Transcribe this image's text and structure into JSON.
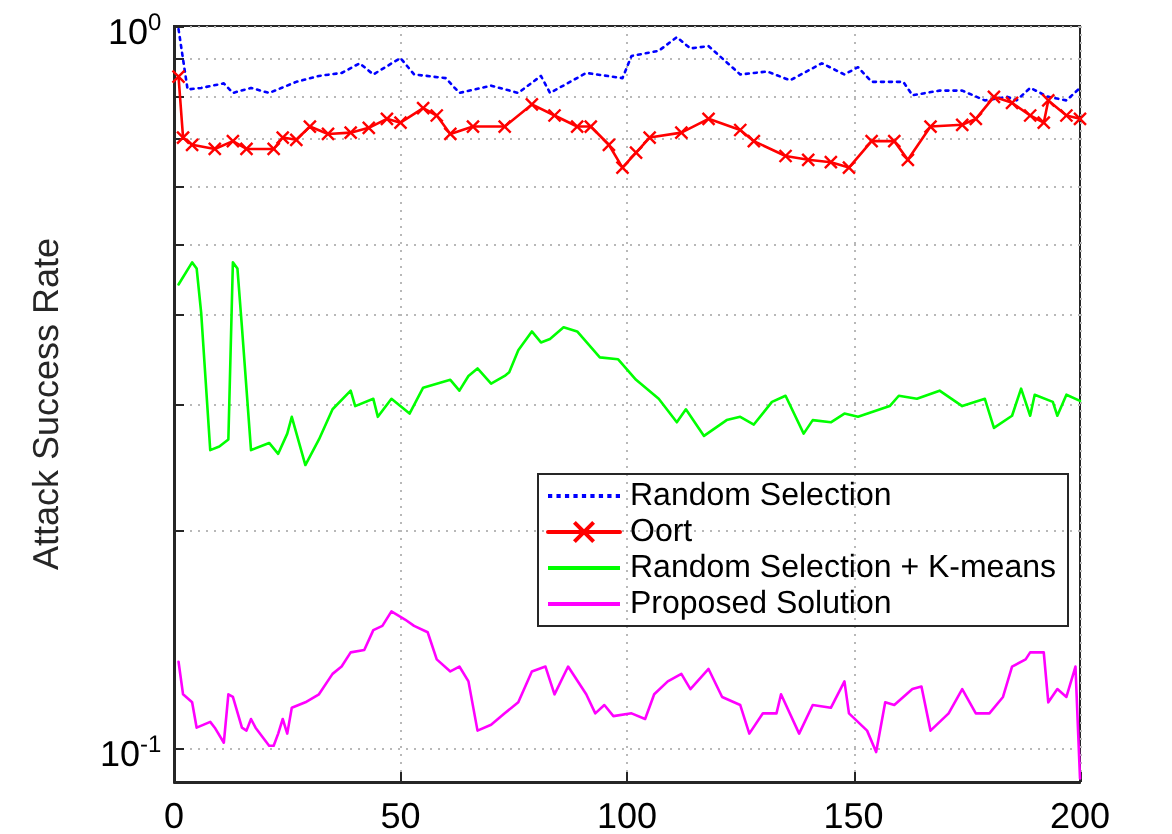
{
  "chart_data": {
    "type": "line",
    "ylabel": "Attack Success Rate",
    "log": "y",
    "grid": true,
    "legend": "bottom right",
    "xlim": [
      0,
      200
    ],
    "xticks": [
      0,
      50,
      100,
      150,
      200
    ],
    "ylim": [
      0.09,
      1
    ],
    "yticks": [
      {
        "value": 0.1,
        "label": "10$^{-1}$"
      },
      {
        "value": 0.2,
        "label": null
      },
      {
        "value": 0.3,
        "label": null
      },
      {
        "value": 0.4,
        "label": null
      },
      {
        "value": 0.5,
        "label": null
      },
      {
        "value": 0.6,
        "label": null
      },
      {
        "value": 0.7,
        "label": null
      },
      {
        "value": 0.8,
        "label": null
      },
      {
        "value": 0.9,
        "label": null
      },
      {
        "value": 1,
        "label": "10$^{0}$"
      }
    ],
    "series": [
      {
        "name": "Random Selection",
        "color": "#0000ff",
        "line_style": "dotted",
        "marker": "none",
        "x": [
          1,
          3,
          6,
          11,
          13,
          17,
          21,
          27,
          32,
          37,
          41,
          44,
          50,
          53,
          60,
          63,
          70,
          76,
          81,
          83,
          91,
          99,
          101,
          107,
          111,
          114,
          118,
          125,
          131,
          136,
          143,
          148,
          151,
          154,
          161,
          163,
          169,
          174,
          179,
          184,
          186,
          189,
          193,
          197,
          200
        ],
        "values": [
          0.99,
          0.817,
          0.821,
          0.833,
          0.808,
          0.821,
          0.808,
          0.837,
          0.853,
          0.861,
          0.888,
          0.857,
          0.903,
          0.857,
          0.847,
          0.808,
          0.827,
          0.808,
          0.853,
          0.808,
          0.861,
          0.847,
          0.909,
          0.924,
          0.965,
          0.931,
          0.938,
          0.857,
          0.865,
          0.841,
          0.888,
          0.857,
          0.877,
          0.837,
          0.837,
          0.802,
          0.814,
          0.814,
          0.789,
          0.798,
          0.789,
          0.821,
          0.798,
          0.789,
          0.821
        ]
      },
      {
        "name": "Oort",
        "color": "#ff0000",
        "line_style": "solid",
        "marker": "cross",
        "x": [
          1,
          2,
          4,
          9,
          13,
          16,
          22,
          24,
          27,
          30,
          34,
          39,
          43,
          47,
          50,
          55,
          58,
          61,
          66,
          73,
          79,
          84,
          89,
          92,
          96,
          99,
          102,
          105,
          112,
          118,
          125,
          128,
          135,
          140,
          145,
          149,
          154,
          159,
          162,
          167,
          174,
          177,
          181,
          185,
          189,
          192,
          193,
          197,
          200
        ],
        "values": [
          0.851,
          0.701,
          0.685,
          0.676,
          0.693,
          0.676,
          0.676,
          0.701,
          0.696,
          0.726,
          0.709,
          0.712,
          0.723,
          0.744,
          0.735,
          0.77,
          0.752,
          0.709,
          0.726,
          0.726,
          0.779,
          0.752,
          0.726,
          0.726,
          0.685,
          0.637,
          0.668,
          0.701,
          0.712,
          0.744,
          0.718,
          0.693,
          0.661,
          0.653,
          0.648,
          0.637,
          0.693,
          0.693,
          0.653,
          0.726,
          0.73,
          0.744,
          0.798,
          0.783,
          0.752,
          0.735,
          0.789,
          0.752,
          0.744
        ]
      },
      {
        "name": "Random Selection + K-means",
        "color": "#00ff00",
        "line_style": "solid",
        "marker": "none",
        "x": [
          1,
          4,
          5,
          6,
          8,
          10,
          12,
          13,
          14,
          15,
          17,
          21,
          23,
          25,
          26,
          29,
          32,
          35,
          39,
          40,
          44,
          45,
          48,
          52,
          55,
          58,
          61,
          63,
          65,
          67,
          70,
          73,
          74,
          76,
          79,
          81,
          83,
          86,
          89,
          94,
          98,
          102,
          107,
          111,
          113,
          117,
          122,
          125,
          128,
          132,
          135,
          139,
          141,
          145,
          148,
          151,
          158,
          160,
          164,
          169,
          174,
          179,
          181,
          185,
          187,
          189,
          190,
          194,
          195,
          197,
          200
        ],
        "values": [
          0.439,
          0.471,
          0.462,
          0.401,
          0.259,
          0.262,
          0.268,
          0.471,
          0.462,
          0.383,
          0.259,
          0.265,
          0.256,
          0.273,
          0.288,
          0.247,
          0.268,
          0.295,
          0.313,
          0.298,
          0.305,
          0.288,
          0.305,
          0.291,
          0.316,
          0.32,
          0.324,
          0.313,
          0.328,
          0.336,
          0.32,
          0.328,
          0.332,
          0.356,
          0.378,
          0.365,
          0.369,
          0.383,
          0.378,
          0.348,
          0.346,
          0.324,
          0.305,
          0.283,
          0.295,
          0.271,
          0.285,
          0.288,
          0.281,
          0.302,
          0.308,
          0.273,
          0.285,
          0.283,
          0.291,
          0.288,
          0.298,
          0.308,
          0.305,
          0.313,
          0.298,
          0.305,
          0.278,
          0.289,
          0.315,
          0.289,
          0.309,
          0.302,
          0.289,
          0.309,
          0.303
        ]
      },
      {
        "name": "Proposed Solution",
        "color": "#ff00ff",
        "line_style": "solid",
        "marker": "none",
        "x": [
          1,
          2,
          4,
          5,
          8,
          9,
          11,
          12,
          13,
          15,
          16,
          17,
          18,
          21,
          22,
          23,
          24,
          25,
          26,
          29,
          32,
          35,
          37,
          39,
          42,
          44,
          46,
          48,
          51,
          53,
          56,
          58,
          61,
          63,
          65,
          67,
          70,
          73,
          76,
          79,
          82,
          84,
          87,
          91,
          93,
          95,
          97,
          101,
          104,
          106,
          109,
          112,
          114,
          118,
          121,
          125,
          127,
          130,
          133,
          134,
          138,
          141,
          145,
          148,
          149,
          153,
          155,
          157,
          159,
          163,
          165,
          167,
          171,
          174,
          177,
          180,
          183,
          185,
          188,
          189,
          192,
          193,
          195,
          197,
          199,
          200
        ],
        "values": [
          0.132,
          0.119,
          0.116,
          0.107,
          0.109,
          0.107,
          0.102,
          0.119,
          0.118,
          0.107,
          0.106,
          0.11,
          0.107,
          0.101,
          0.101,
          0.105,
          0.11,
          0.105,
          0.114,
          0.116,
          0.119,
          0.127,
          0.13,
          0.136,
          0.137,
          0.146,
          0.148,
          0.155,
          0.151,
          0.148,
          0.145,
          0.133,
          0.128,
          0.13,
          0.124,
          0.106,
          0.108,
          0.112,
          0.116,
          0.128,
          0.13,
          0.119,
          0.13,
          0.119,
          0.112,
          0.115,
          0.111,
          0.112,
          0.11,
          0.119,
          0.124,
          0.127,
          0.121,
          0.129,
          0.118,
          0.115,
          0.105,
          0.112,
          0.112,
          0.119,
          0.105,
          0.115,
          0.114,
          0.124,
          0.112,
          0.106,
          0.099,
          0.116,
          0.115,
          0.121,
          0.122,
          0.106,
          0.112,
          0.121,
          0.112,
          0.112,
          0.118,
          0.13,
          0.133,
          0.136,
          0.136,
          0.116,
          0.121,
          0.118,
          0.13,
          0.091
        ]
      }
    ]
  }
}
